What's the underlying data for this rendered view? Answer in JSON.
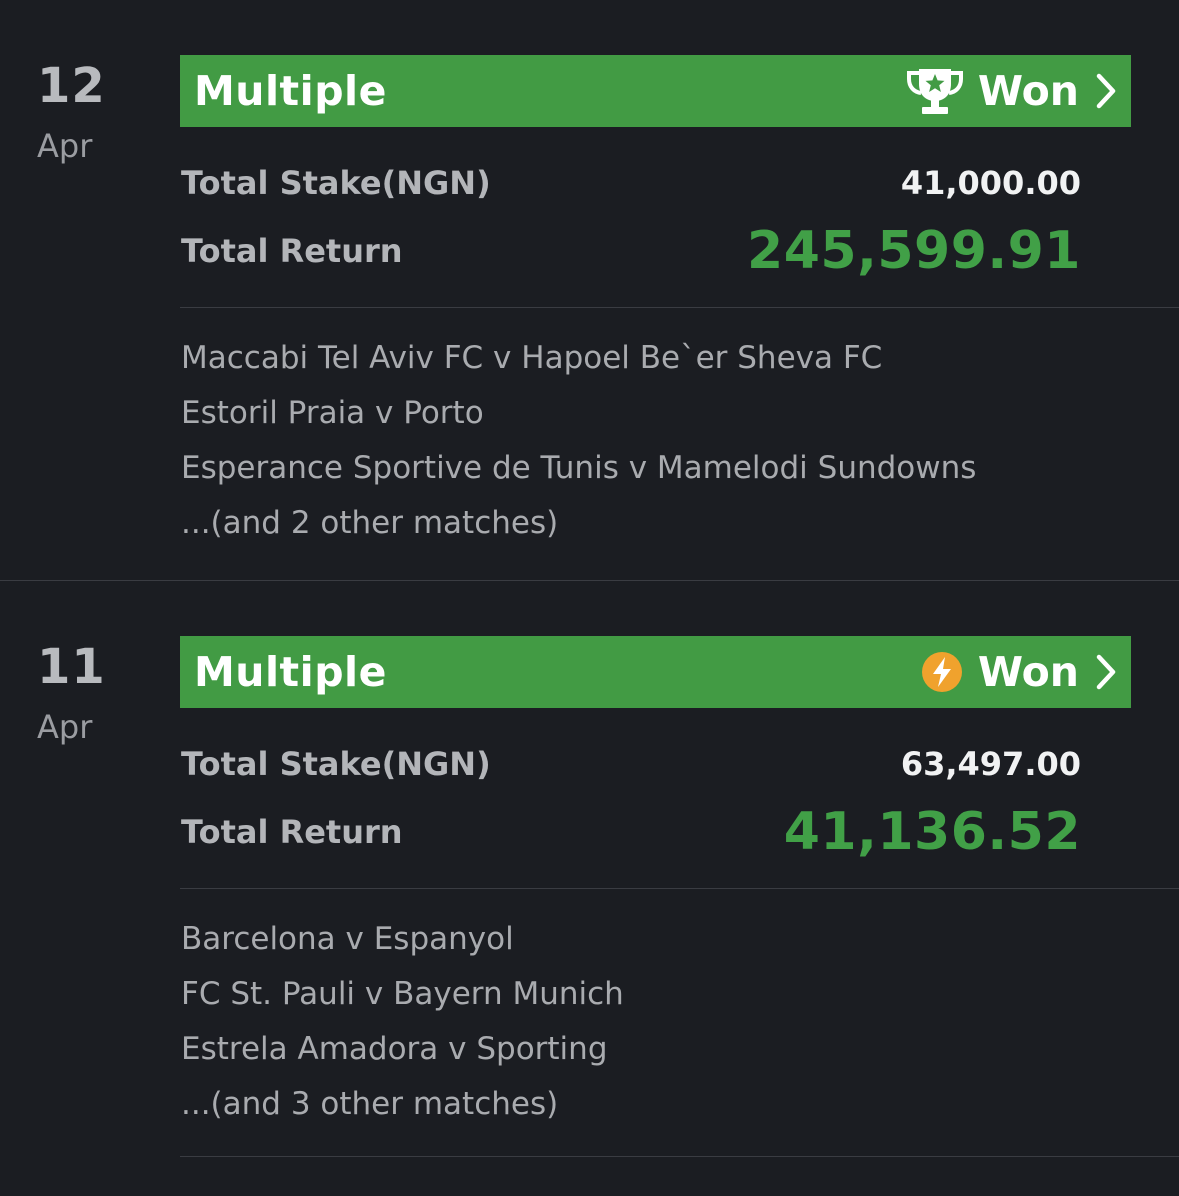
{
  "bets": [
    {
      "day": "12",
      "month": "Apr",
      "type": "Multiple",
      "status": "Won",
      "status_icon": "trophy-icon",
      "stake_label": "Total Stake(NGN)",
      "stake": "41,000.00",
      "return_label": "Total Return",
      "return": "245,599.91",
      "matches": [
        "Maccabi Tel Aviv FC v Hapoel Be`er Sheva FC",
        "Estoril Praia v Porto",
        "Esperance Sportive de Tunis v Mamelodi Sundowns",
        "...(and 2 other matches)"
      ]
    },
    {
      "day": "11",
      "month": "Apr",
      "type": "Multiple",
      "status": "Won",
      "status_icon": "lightning-icon",
      "stake_label": "Total Stake(NGN)",
      "stake": "63,497.00",
      "return_label": "Total Return",
      "return": "41,136.52",
      "matches": [
        "Barcelona v Espanyol",
        "FC St. Pauli v Bayern Munich",
        "Estrela Amadora v Sporting",
        "...(and 3 other matches)"
      ]
    }
  ],
  "colors": {
    "background": "#1b1d22",
    "header_green": "#429b44",
    "return_green": "#41a047",
    "lightning_orange": "#f0a22d"
  }
}
